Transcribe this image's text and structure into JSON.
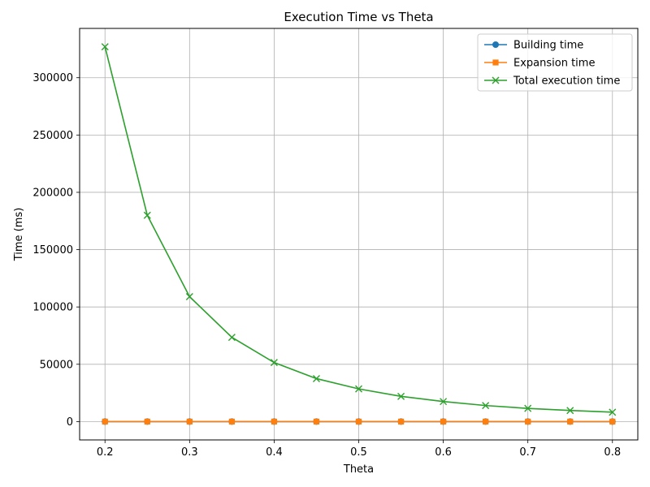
{
  "chart_data": {
    "type": "line",
    "title": "Execution Time vs Theta",
    "xlabel": "Theta",
    "ylabel": "Time (ms)",
    "xlim": [
      0.17,
      0.83
    ],
    "ylim": [
      -16000,
      343000
    ],
    "xticks": [
      0.2,
      0.3,
      0.4,
      0.5,
      0.6,
      0.7,
      0.8
    ],
    "xtick_labels": [
      "0.2",
      "0.3",
      "0.4",
      "0.5",
      "0.6",
      "0.7",
      "0.8"
    ],
    "yticks": [
      0,
      50000,
      100000,
      150000,
      200000,
      250000,
      300000
    ],
    "ytick_labels": [
      "0",
      "50000",
      "100000",
      "150000",
      "200000",
      "250000",
      "300000"
    ],
    "grid": true,
    "legend_position": "top-right",
    "x": [
      0.2,
      0.25,
      0.3,
      0.35,
      0.4,
      0.45,
      0.5,
      0.55,
      0.6,
      0.65,
      0.7,
      0.75,
      0.8
    ],
    "series": [
      {
        "name": "Building time",
        "color": "#1f77b4",
        "marker": "circle",
        "values": [
          0,
          0,
          0,
          0,
          0,
          0,
          0,
          0,
          0,
          0,
          0,
          0,
          0
        ]
      },
      {
        "name": "Expansion time",
        "color": "#ff7f0e",
        "marker": "square",
        "values": [
          0,
          0,
          0,
          0,
          0,
          0,
          0,
          0,
          0,
          0,
          0,
          0,
          0
        ]
      },
      {
        "name": "Total execution time",
        "color": "#2ca02c",
        "marker": "x",
        "values": [
          327000,
          180000,
          109000,
          73500,
          51500,
          37500,
          28500,
          22000,
          17500,
          14000,
          11500,
          9700,
          8200
        ]
      }
    ]
  }
}
